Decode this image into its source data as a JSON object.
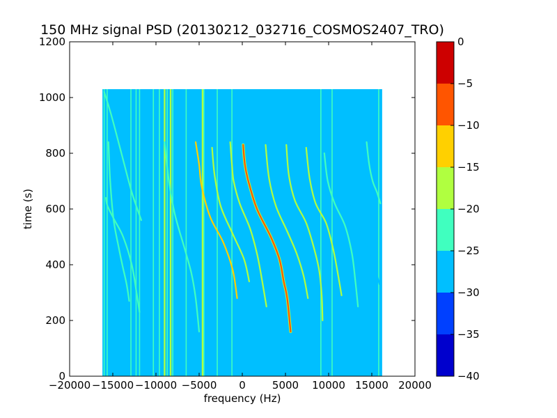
{
  "chart_data": {
    "type": "heatmap",
    "title": "150 MHz signal PSD (20130212_032716_COSMOS2407_TRO)",
    "xlabel": "frequency (Hz)",
    "ylabel": "time (s)",
    "xlim": [
      -20000,
      20000
    ],
    "ylim": [
      0,
      1200
    ],
    "x_ticks": [
      -20000,
      -15000,
      -10000,
      -5000,
      0,
      5000,
      10000,
      15000,
      20000
    ],
    "y_ticks": [
      0,
      200,
      400,
      600,
      800,
      1000,
      1200
    ],
    "data_extent": {
      "x": [
        -16200,
        16200
      ],
      "y": [
        0,
        1030
      ]
    },
    "background_level": -28,
    "colorbar": {
      "levels": [
        -40,
        -35,
        -30,
        -25,
        -20,
        -15,
        -10,
        -5,
        0
      ],
      "tick_labels": [
        "−40",
        "−35",
        "−30",
        "−25",
        "−20",
        "−15",
        "−10",
        "−5",
        "0"
      ],
      "colors": [
        "#0000cd",
        "#0040ff",
        "#00bfff",
        "#40ffbf",
        "#b0ff40",
        "#ffd000",
        "#ff5500",
        "#cd0000"
      ]
    },
    "vertical_lines": [
      {
        "x": -16000,
        "level": -22
      },
      {
        "x": -15650,
        "level": -24
      },
      {
        "x": -12900,
        "level": -23
      },
      {
        "x": -12300,
        "level": -24
      },
      {
        "x": -11900,
        "level": -23
      },
      {
        "x": -10300,
        "level": -24
      },
      {
        "x": -9600,
        "level": -21
      },
      {
        "x": -9000,
        "level": -17
      },
      {
        "x": -8700,
        "level": -22
      },
      {
        "x": -8300,
        "level": -16
      },
      {
        "x": -8050,
        "level": -21
      },
      {
        "x": -6500,
        "level": -24
      },
      {
        "x": -4600,
        "level": -16
      },
      {
        "x": -4450,
        "level": -21
      },
      {
        "x": -2900,
        "level": -20
      },
      {
        "x": -1200,
        "level": -23
      },
      {
        "x": 9100,
        "level": -22
      },
      {
        "x": 10400,
        "level": -24
      },
      {
        "x": 15800,
        "level": -24
      }
    ],
    "doppler_tracks": [
      {
        "points": [
          [
            -15800,
            640
          ],
          [
            -15600,
            610
          ],
          [
            -14800,
            560
          ],
          [
            -13800,
            500
          ],
          [
            -12800,
            400
          ],
          [
            -12200,
            290
          ],
          [
            -11900,
            230
          ]
        ],
        "level": -21
      },
      {
        "points": [
          [
            -15500,
            840
          ],
          [
            -15300,
            700
          ],
          [
            -14900,
            560
          ],
          [
            -14300,
            460
          ],
          [
            -13900,
            400
          ],
          [
            -13400,
            330
          ],
          [
            -13100,
            270
          ]
        ],
        "level": -22
      },
      {
        "points": [
          [
            -16000,
            1020
          ],
          [
            -15200,
            940
          ],
          [
            -14000,
            800
          ],
          [
            -12800,
            660
          ],
          [
            -11700,
            560
          ]
        ],
        "level": -24
      },
      {
        "points": [
          [
            -9000,
            840
          ],
          [
            -8500,
            700
          ],
          [
            -7800,
            580
          ],
          [
            -6700,
            460
          ],
          [
            -5900,
            370
          ],
          [
            -5400,
            280
          ],
          [
            -5000,
            160
          ]
        ],
        "level": -23
      },
      {
        "points": [
          [
            -5400,
            840
          ],
          [
            -5000,
            760
          ],
          [
            -4700,
            680
          ],
          [
            -3700,
            570
          ],
          [
            -2200,
            480
          ],
          [
            -1100,
            380
          ],
          [
            -600,
            280
          ]
        ],
        "level": -14
      },
      {
        "points": [
          [
            -3500,
            820
          ],
          [
            -3200,
            720
          ],
          [
            -2500,
            610
          ],
          [
            -1100,
            510
          ],
          [
            200,
            420
          ],
          [
            800,
            340
          ]
        ],
        "level": -19
      },
      {
        "points": [
          [
            -1400,
            840
          ],
          [
            -1200,
            760
          ],
          [
            -1000,
            700
          ],
          [
            -300,
            620
          ],
          [
            900,
            530
          ],
          [
            1700,
            440
          ],
          [
            2200,
            360
          ],
          [
            2800,
            250
          ]
        ],
        "level": -16
      },
      {
        "points": [
          [
            100,
            830
          ],
          [
            300,
            760
          ],
          [
            700,
            700
          ],
          [
            1700,
            600
          ],
          [
            3300,
            500
          ],
          [
            4300,
            420
          ],
          [
            4800,
            340
          ],
          [
            5200,
            280
          ],
          [
            5600,
            160
          ]
        ],
        "level": -6
      },
      {
        "points": [
          [
            2700,
            830
          ],
          [
            3100,
            710
          ],
          [
            3900,
            610
          ],
          [
            5200,
            520
          ],
          [
            6300,
            440
          ],
          [
            7100,
            360
          ],
          [
            7600,
            280
          ]
        ],
        "level": -17
      },
      {
        "points": [
          [
            5100,
            830
          ],
          [
            5400,
            720
          ],
          [
            6100,
            630
          ],
          [
            7400,
            550
          ],
          [
            8300,
            460
          ],
          [
            8900,
            380
          ],
          [
            9200,
            290
          ],
          [
            9300,
            200
          ]
        ],
        "level": -16
      },
      {
        "points": [
          [
            7400,
            820
          ],
          [
            7800,
            710
          ],
          [
            8500,
            620
          ],
          [
            9700,
            550
          ],
          [
            10500,
            460
          ],
          [
            11000,
            380
          ],
          [
            11500,
            290
          ]
        ],
        "level": -19
      },
      {
        "points": [
          [
            9500,
            800
          ],
          [
            9900,
            700
          ],
          [
            10700,
            620
          ],
          [
            11900,
            540
          ],
          [
            12700,
            440
          ],
          [
            13100,
            340
          ],
          [
            13400,
            250
          ]
        ],
        "level": -21
      },
      {
        "points": [
          [
            12300,
            640
          ],
          [
            13300,
            560
          ],
          [
            14600,
            450
          ],
          [
            15400,
            380
          ],
          [
            15900,
            330
          ]
        ],
        "level": -25
      },
      {
        "points": [
          [
            14400,
            840
          ],
          [
            14700,
            760
          ],
          [
            15100,
            700
          ],
          [
            15600,
            660
          ],
          [
            16000,
            620
          ]
        ],
        "level": -21
      }
    ]
  }
}
